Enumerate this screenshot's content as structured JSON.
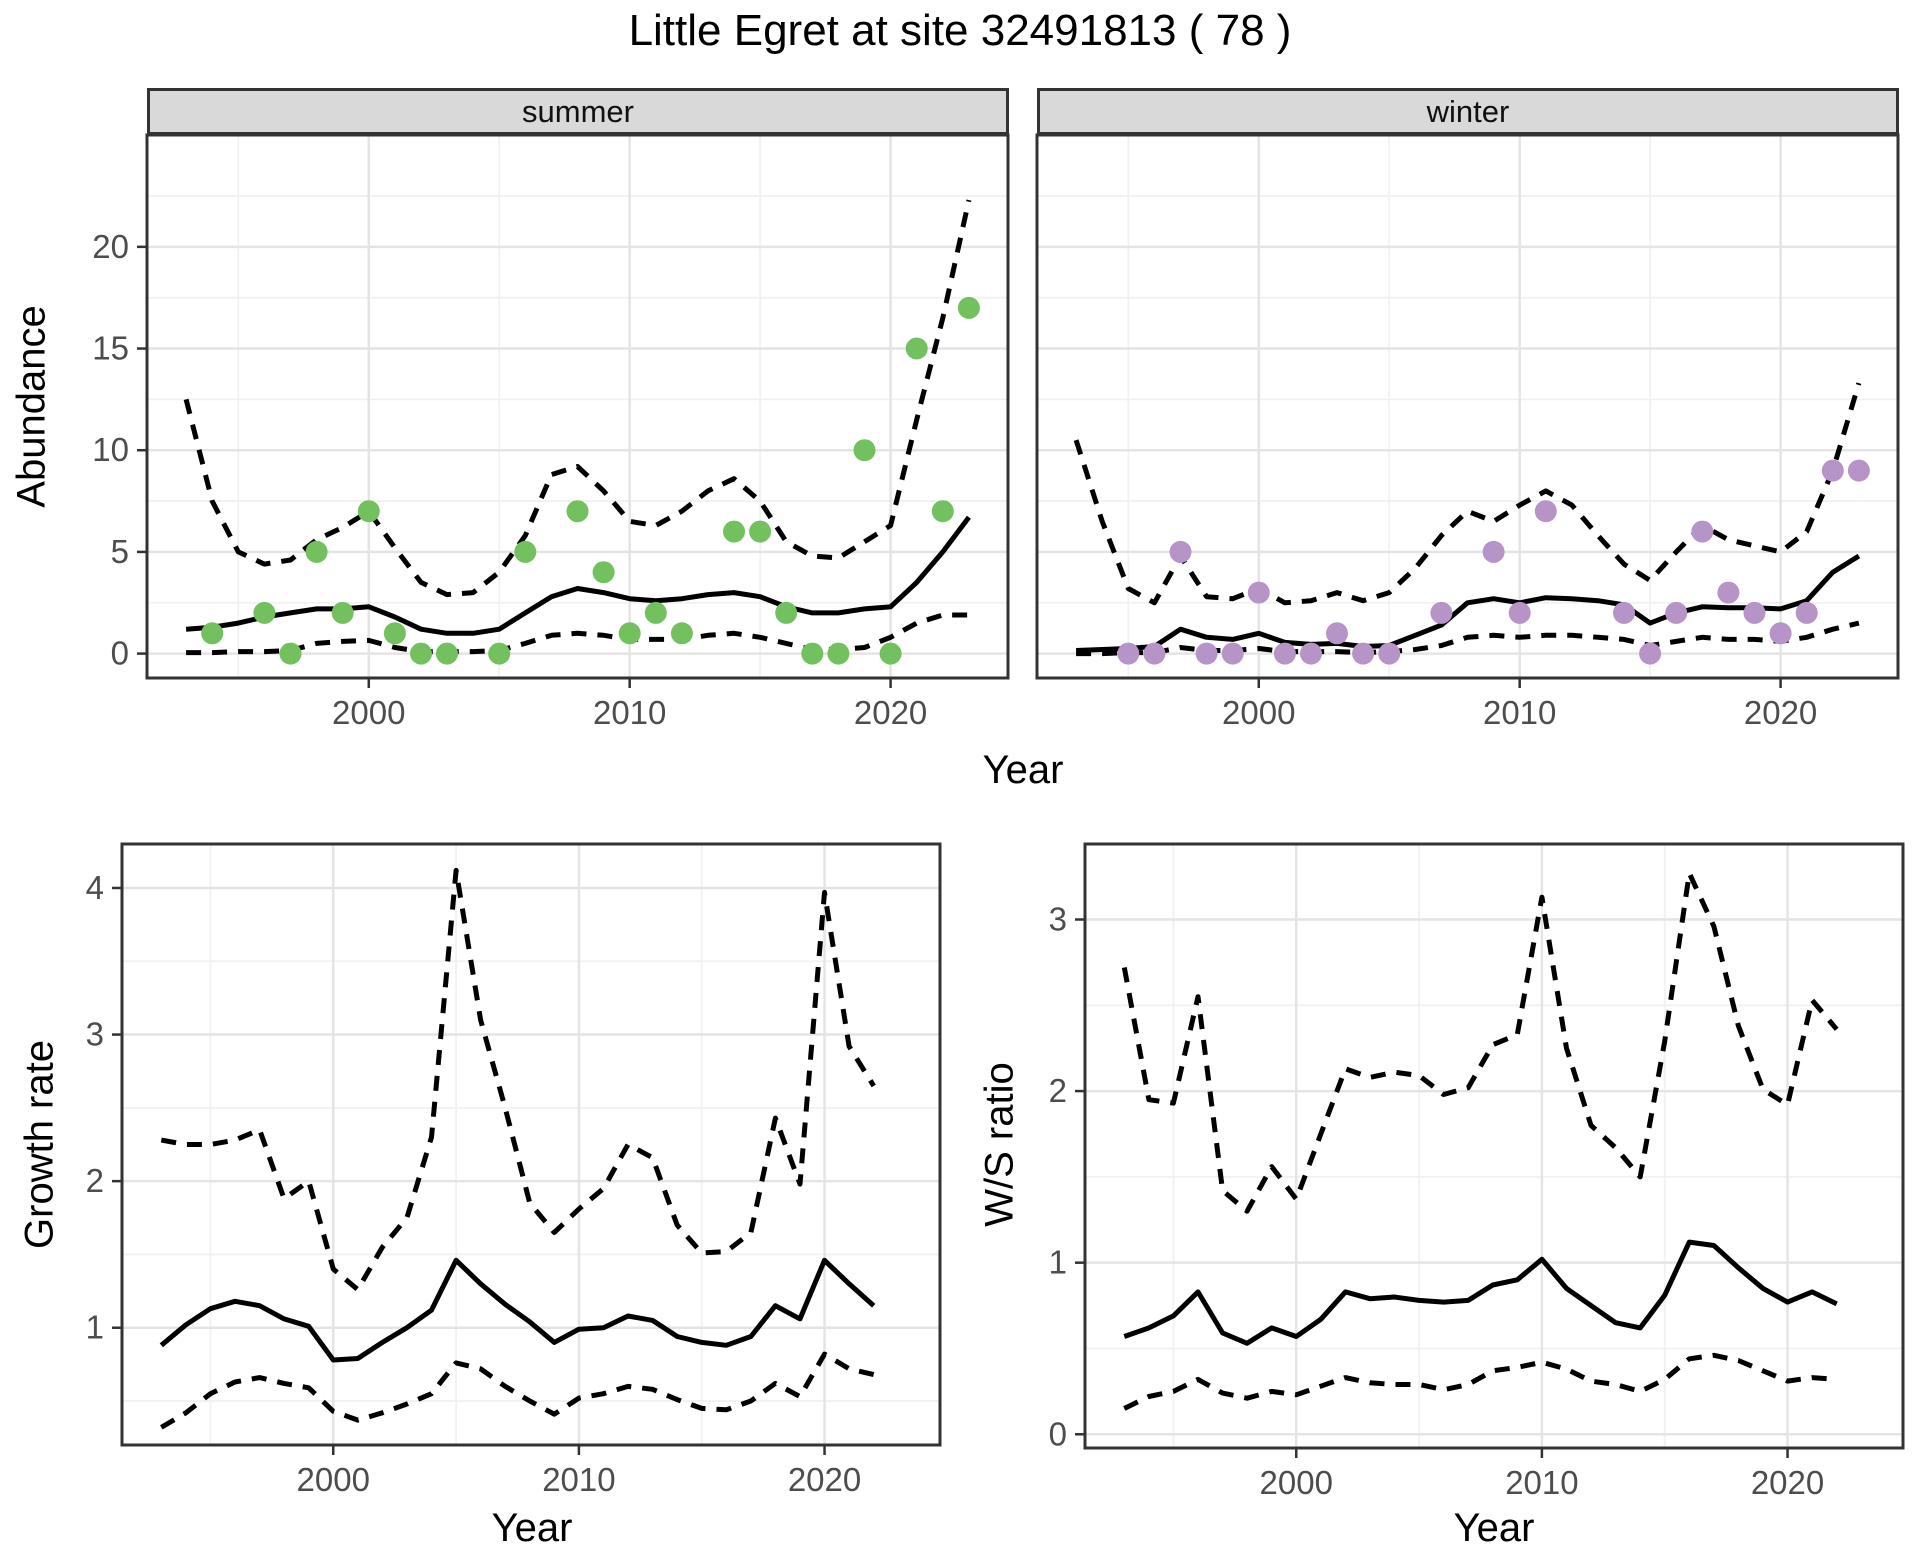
{
  "title": "Little Egret at site 32491813 ( 78 )",
  "facets": [
    "summer",
    "winter"
  ],
  "axes": {
    "x_label": "Year",
    "abundance_label": "Abundance",
    "growth_label": "Growth rate",
    "ws_label": "W/S ratio"
  },
  "colors": {
    "summer_point": "#72c05e",
    "winter_point": "#b794c7",
    "line": "#000000",
    "grid_major": "#e4e4e4",
    "grid_minor": "#f1f1f1",
    "panel_border": "#333333",
    "strip_fill": "#d9d9d9",
    "axis_text": "#4d4d4d",
    "axis_title": "#000000"
  },
  "chart_data": [
    {
      "id": "abundance-summer",
      "type": "line+scatter",
      "facet": "summer",
      "xlabel": "Year",
      "ylabel": "Abundance",
      "xlim": [
        1991.5,
        2024.5
      ],
      "ylim": [
        -1.2,
        25.5
      ],
      "x_ticks": [
        2000,
        2010,
        2020
      ],
      "y_ticks": [
        0,
        5,
        10,
        15,
        20
      ],
      "grid": true,
      "points": {
        "name": "observed-summer-counts",
        "years": [
          1994,
          1996,
          1997,
          1998,
          1999,
          2000,
          2001,
          2002,
          2003,
          2005,
          2006,
          2008,
          2009,
          2010,
          2011,
          2012,
          2014,
          2015,
          2016,
          2017,
          2018,
          2019,
          2020,
          2021,
          2022,
          2023
        ],
        "values": [
          1,
          2,
          0,
          5,
          2,
          7,
          1,
          0,
          0,
          0,
          5,
          7,
          4,
          1,
          2,
          1,
          6,
          6,
          2,
          0,
          0,
          10,
          0,
          15,
          7,
          17
        ]
      },
      "series": [
        {
          "name": "fitted",
          "style": "solid",
          "years": [
            1993,
            1994,
            1995,
            1996,
            1997,
            1998,
            1999,
            2000,
            2001,
            2002,
            2003,
            2004,
            2005,
            2006,
            2007,
            2008,
            2009,
            2010,
            2011,
            2012,
            2013,
            2014,
            2015,
            2016,
            2017,
            2018,
            2019,
            2020,
            2021,
            2022,
            2023
          ],
          "values": [
            1.2,
            1.3,
            1.5,
            1.8,
            2.0,
            2.2,
            2.2,
            2.3,
            1.8,
            1.2,
            1.0,
            1.0,
            1.2,
            2.0,
            2.8,
            3.2,
            3.0,
            2.7,
            2.6,
            2.7,
            2.9,
            3.0,
            2.8,
            2.3,
            2.0,
            2.0,
            2.2,
            2.3,
            3.5,
            5.0,
            6.7
          ]
        },
        {
          "name": "upper-ci",
          "style": "dashed",
          "years": [
            1993,
            1994,
            1995,
            1996,
            1997,
            1998,
            1999,
            2000,
            2001,
            2002,
            2003,
            2004,
            2005,
            2006,
            2007,
            2008,
            2009,
            2010,
            2011,
            2012,
            2013,
            2014,
            2015,
            2016,
            2017,
            2018,
            2019,
            2020,
            2021,
            2022,
            2023
          ],
          "values": [
            12.5,
            7.5,
            5.0,
            4.4,
            4.6,
            5.6,
            6.2,
            7.0,
            5.2,
            3.5,
            2.9,
            3.0,
            4.0,
            5.8,
            8.8,
            9.2,
            8.0,
            6.5,
            6.3,
            7.0,
            8.0,
            8.6,
            7.5,
            5.5,
            4.8,
            4.7,
            5.5,
            6.3,
            11.5,
            16.5,
            22.3
          ]
        },
        {
          "name": "lower-ci",
          "style": "dashed",
          "years": [
            1993,
            1994,
            1995,
            1996,
            1997,
            1998,
            1999,
            2000,
            2001,
            2002,
            2003,
            2004,
            2005,
            2006,
            2007,
            2008,
            2009,
            2010,
            2011,
            2012,
            2013,
            2014,
            2015,
            2016,
            2017,
            2018,
            2019,
            2020,
            2021,
            2022,
            2023
          ],
          "values": [
            0.05,
            0.05,
            0.1,
            0.1,
            0.15,
            0.5,
            0.6,
            0.65,
            0.3,
            0.1,
            0.1,
            0.1,
            0.15,
            0.5,
            0.9,
            1.0,
            0.9,
            0.7,
            0.7,
            0.7,
            0.9,
            1.0,
            0.8,
            0.5,
            0.2,
            0.2,
            0.3,
            0.8,
            1.5,
            1.9,
            1.9
          ]
        }
      ]
    },
    {
      "id": "abundance-winter",
      "type": "line+scatter",
      "facet": "winter",
      "xlabel": "Year",
      "ylabel": "Abundance",
      "xlim": [
        1991.5,
        2024.5
      ],
      "ylim": [
        -1.2,
        25.5
      ],
      "x_ticks": [
        2000,
        2010,
        2020
      ],
      "y_ticks": [
        0,
        5,
        10,
        15,
        20
      ],
      "grid": true,
      "points": {
        "name": "observed-winter-counts",
        "years": [
          1995,
          1996,
          1997,
          1998,
          1999,
          2000,
          2001,
          2002,
          2003,
          2004,
          2005,
          2007,
          2009,
          2010,
          2011,
          2014,
          2015,
          2016,
          2017,
          2018,
          2019,
          2020,
          2021,
          2022,
          2023
        ],
        "values": [
          0,
          0,
          5,
          0,
          0,
          3,
          0,
          0,
          1,
          0,
          0,
          2,
          5,
          2,
          7,
          2,
          0,
          2,
          6,
          3,
          2,
          1,
          2,
          9,
          9
        ]
      },
      "series": [
        {
          "name": "fitted",
          "style": "solid",
          "years": [
            1993,
            1994,
            1995,
            1996,
            1997,
            1998,
            1999,
            2000,
            2001,
            2002,
            2003,
            2004,
            2005,
            2006,
            2007,
            2008,
            2009,
            2010,
            2011,
            2012,
            2013,
            2014,
            2015,
            2016,
            2017,
            2018,
            2019,
            2020,
            2021,
            2022,
            2023
          ],
          "values": [
            0.15,
            0.2,
            0.25,
            0.35,
            1.2,
            0.8,
            0.7,
            1.0,
            0.55,
            0.45,
            0.5,
            0.35,
            0.4,
            0.9,
            1.4,
            2.5,
            2.7,
            2.5,
            2.75,
            2.7,
            2.6,
            2.4,
            1.5,
            2.0,
            2.3,
            2.25,
            2.25,
            2.2,
            2.6,
            4.0,
            4.8
          ]
        },
        {
          "name": "upper-ci",
          "style": "dashed",
          "years": [
            1993,
            1994,
            1995,
            1996,
            1997,
            1998,
            1999,
            2000,
            2001,
            2002,
            2003,
            2004,
            2005,
            2006,
            2007,
            2008,
            2009,
            2010,
            2011,
            2012,
            2013,
            2014,
            2015,
            2016,
            2017,
            2018,
            2019,
            2020,
            2021,
            2022,
            2023
          ],
          "values": [
            10.5,
            6.5,
            3.2,
            2.5,
            4.8,
            2.8,
            2.7,
            3.2,
            2.5,
            2.6,
            3.0,
            2.6,
            3.0,
            4.2,
            5.8,
            7.0,
            6.5,
            7.3,
            8.0,
            7.3,
            5.8,
            4.4,
            3.6,
            5.0,
            6.3,
            5.6,
            5.3,
            5.0,
            6.0,
            9.0,
            13.3
          ]
        },
        {
          "name": "lower-ci",
          "style": "dashed",
          "years": [
            1993,
            1994,
            1995,
            1996,
            1997,
            1998,
            1999,
            2000,
            2001,
            2002,
            2003,
            2004,
            2005,
            2006,
            2007,
            2008,
            2009,
            2010,
            2011,
            2012,
            2013,
            2014,
            2015,
            2016,
            2017,
            2018,
            2019,
            2020,
            2021,
            2022,
            2023
          ],
          "values": [
            0.0,
            0.0,
            0.05,
            0.05,
            0.3,
            0.15,
            0.15,
            0.25,
            0.1,
            0.1,
            0.1,
            0.05,
            0.1,
            0.2,
            0.4,
            0.8,
            0.9,
            0.8,
            0.9,
            0.9,
            0.8,
            0.7,
            0.4,
            0.6,
            0.8,
            0.7,
            0.7,
            0.6,
            0.8,
            1.2,
            1.5
          ]
        }
      ]
    },
    {
      "id": "growth-rate",
      "type": "line",
      "xlabel": "Year",
      "ylabel": "Growth rate",
      "xlim": [
        1991.4,
        2024.7
      ],
      "ylim": [
        0.2,
        4.3
      ],
      "x_ticks": [
        2000,
        2010,
        2020
      ],
      "y_ticks": [
        1,
        2,
        3,
        4
      ],
      "grid": true,
      "series": [
        {
          "name": "fitted",
          "style": "solid",
          "years": [
            1993,
            1994,
            1995,
            1996,
            1997,
            1998,
            1999,
            2000,
            2001,
            2002,
            2003,
            2004,
            2005,
            2006,
            2007,
            2008,
            2009,
            2010,
            2011,
            2012,
            2013,
            2014,
            2015,
            2016,
            2017,
            2018,
            2019,
            2020,
            2021,
            2022
          ],
          "values": [
            0.88,
            1.02,
            1.13,
            1.18,
            1.15,
            1.06,
            1.01,
            0.78,
            0.79,
            0.9,
            1.0,
            1.12,
            1.46,
            1.3,
            1.16,
            1.04,
            0.9,
            0.99,
            1.0,
            1.08,
            1.05,
            0.94,
            0.9,
            0.88,
            0.94,
            1.15,
            1.06,
            1.46,
            1.3,
            1.15
          ]
        },
        {
          "name": "upper-ci",
          "style": "dashed",
          "years": [
            1993,
            1994,
            1995,
            1996,
            1997,
            1998,
            1999,
            2000,
            2001,
            2002,
            2003,
            2004,
            2005,
            2006,
            2007,
            2008,
            2009,
            2010,
            2011,
            2012,
            2013,
            2014,
            2015,
            2016,
            2017,
            2018,
            2019,
            2020,
            2021,
            2022
          ],
          "values": [
            2.28,
            2.25,
            2.25,
            2.28,
            2.35,
            1.88,
            2.0,
            1.4,
            1.26,
            1.55,
            1.75,
            2.3,
            4.12,
            3.1,
            2.5,
            1.85,
            1.65,
            1.81,
            1.95,
            2.25,
            2.16,
            1.7,
            1.51,
            1.52,
            1.65,
            2.43,
            1.98,
            3.97,
            2.92,
            2.65
          ]
        },
        {
          "name": "lower-ci",
          "style": "dashed",
          "years": [
            1993,
            1994,
            1995,
            1996,
            1997,
            1998,
            1999,
            2000,
            2001,
            2002,
            2003,
            2004,
            2005,
            2006,
            2007,
            2008,
            2009,
            2010,
            2011,
            2012,
            2013,
            2014,
            2015,
            2016,
            2017,
            2018,
            2019,
            2020,
            2021,
            2022
          ],
          "values": [
            0.32,
            0.42,
            0.55,
            0.63,
            0.66,
            0.62,
            0.59,
            0.43,
            0.37,
            0.42,
            0.48,
            0.55,
            0.76,
            0.72,
            0.6,
            0.5,
            0.41,
            0.52,
            0.55,
            0.6,
            0.58,
            0.51,
            0.45,
            0.44,
            0.5,
            0.62,
            0.53,
            0.82,
            0.72,
            0.68
          ]
        }
      ]
    },
    {
      "id": "ws-ratio",
      "type": "line",
      "xlabel": "Year",
      "ylabel": "W/S ratio",
      "xlim": [
        1991.4,
        2024.7
      ],
      "ylim": [
        -0.08,
        3.44
      ],
      "x_ticks": [
        2000,
        2010,
        2020
      ],
      "y_ticks": [
        0,
        1,
        2,
        3
      ],
      "grid": true,
      "series": [
        {
          "name": "fitted",
          "style": "solid",
          "years": [
            1993,
            1994,
            1995,
            1996,
            1997,
            1998,
            1999,
            2000,
            2001,
            2002,
            2003,
            2004,
            2005,
            2006,
            2007,
            2008,
            2009,
            2010,
            2011,
            2012,
            2013,
            2014,
            2015,
            2016,
            2017,
            2018,
            2019,
            2020,
            2021,
            2022
          ],
          "values": [
            0.57,
            0.62,
            0.69,
            0.83,
            0.59,
            0.53,
            0.62,
            0.57,
            0.67,
            0.83,
            0.79,
            0.8,
            0.78,
            0.77,
            0.78,
            0.87,
            0.9,
            1.02,
            0.85,
            0.75,
            0.65,
            0.62,
            0.81,
            1.12,
            1.1,
            0.97,
            0.85,
            0.77,
            0.83,
            0.76
          ]
        },
        {
          "name": "upper-ci",
          "style": "dashed",
          "years": [
            1993,
            1994,
            1995,
            1996,
            1997,
            1998,
            1999,
            2000,
            2001,
            2002,
            2003,
            2004,
            2005,
            2006,
            2007,
            2008,
            2009,
            2010,
            2011,
            2012,
            2013,
            2014,
            2015,
            2016,
            2017,
            2018,
            2019,
            2020,
            2021,
            2022
          ],
          "values": [
            2.72,
            1.95,
            1.93,
            2.55,
            1.42,
            1.3,
            1.56,
            1.37,
            1.75,
            2.13,
            2.08,
            2.11,
            2.09,
            1.98,
            2.02,
            2.27,
            2.33,
            3.13,
            2.25,
            1.8,
            1.67,
            1.5,
            2.29,
            3.27,
            2.96,
            2.38,
            2.01,
            1.92,
            2.53,
            2.36
          ]
        },
        {
          "name": "lower-ci",
          "style": "dashed",
          "years": [
            1993,
            1994,
            1995,
            1996,
            1997,
            1998,
            1999,
            2000,
            2001,
            2002,
            2003,
            2004,
            2005,
            2006,
            2007,
            2008,
            2009,
            2010,
            2011,
            2012,
            2013,
            2014,
            2015,
            2016,
            2017,
            2018,
            2019,
            2020,
            2021,
            2022
          ],
          "values": [
            0.15,
            0.22,
            0.25,
            0.32,
            0.24,
            0.21,
            0.25,
            0.23,
            0.28,
            0.33,
            0.3,
            0.29,
            0.29,
            0.26,
            0.29,
            0.37,
            0.39,
            0.42,
            0.38,
            0.31,
            0.29,
            0.25,
            0.32,
            0.44,
            0.46,
            0.43,
            0.37,
            0.31,
            0.33,
            0.32
          ]
        }
      ]
    }
  ]
}
